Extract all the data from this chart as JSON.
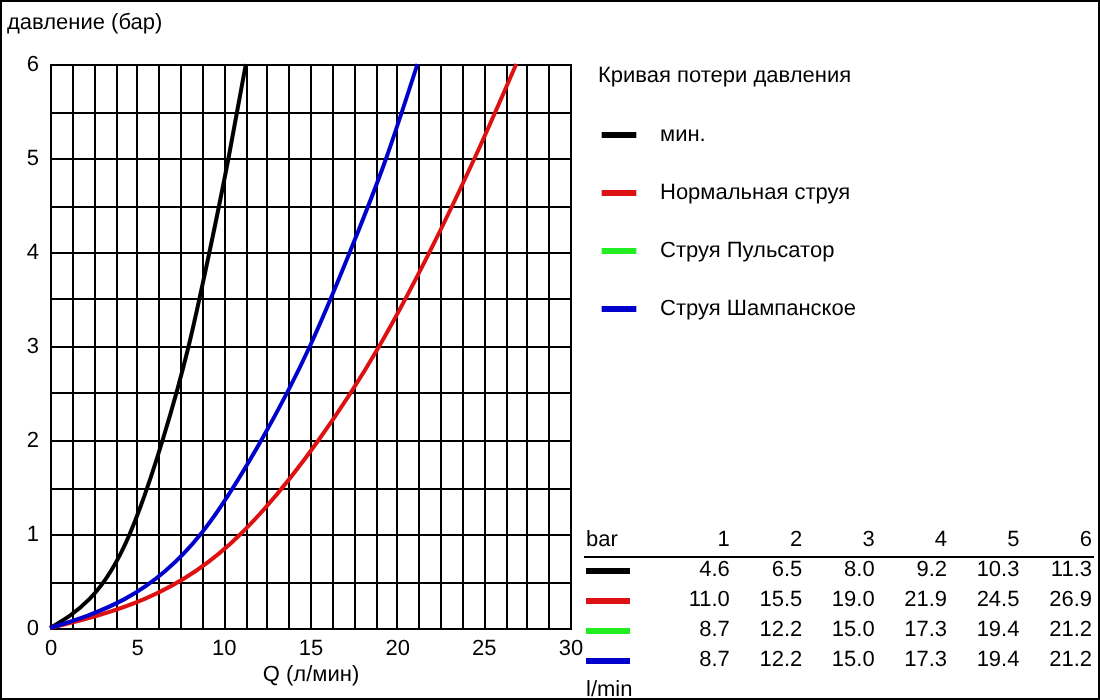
{
  "chart_data": {
    "type": "line",
    "xlabel": "Q (л/мин)",
    "ylabel": "давление (бар)",
    "legend_title": "Кривая потери давления",
    "xlim": [
      0,
      30
    ],
    "ylim": [
      0,
      6
    ],
    "xticks": [
      0,
      {
        "value": 1.25,
        "label": null
      },
      {
        "value": 2.5,
        "label": null
      },
      {
        "value": 3.75,
        "label": null
      },
      5,
      {
        "value": 6.25,
        "label": null
      },
      {
        "value": 7.5,
        "label": null
      },
      {
        "value": 8.75,
        "label": null
      },
      10,
      {
        "value": 11.25,
        "label": null
      },
      {
        "value": 12.5,
        "label": null
      },
      {
        "value": 13.75,
        "label": null
      },
      15,
      {
        "value": 16.25,
        "label": null
      },
      {
        "value": 17.5,
        "label": null
      },
      {
        "value": 18.75,
        "label": null
      },
      20,
      {
        "value": 21.25,
        "label": null
      },
      {
        "value": 22.5,
        "label": null
      },
      {
        "value": 23.75,
        "label": null
      },
      25,
      {
        "value": 26.25,
        "label": null
      },
      {
        "value": 27.5,
        "label": null
      },
      {
        "value": 28.75,
        "label": null
      },
      30
    ],
    "yticks": [
      0,
      {
        "value": 0.5,
        "label": null
      },
      1,
      {
        "value": 1.5,
        "label": null
      },
      2,
      {
        "value": 2.5,
        "label": null
      },
      3,
      {
        "value": 3.5,
        "label": null
      },
      4,
      {
        "value": 4.5,
        "label": null
      },
      5,
      {
        "value": 5.5,
        "label": null
      },
      6
    ],
    "grid": true,
    "legend": "top right",
    "line_style": "solid",
    "series": [
      {
        "name": "мин.",
        "color": "#000000",
        "x": [
          0,
          4.6,
          6.5,
          8.0,
          9.2,
          10.3,
          11.3
        ],
        "values": [
          0,
          1,
          2,
          3,
          4,
          5,
          6
        ]
      },
      {
        "name": "Нормальная струя",
        "color": "#dd1111",
        "x": [
          0,
          11.0,
          15.5,
          19.0,
          21.9,
          24.5,
          26.9
        ],
        "values": [
          0,
          1,
          2,
          3,
          4,
          5,
          6
        ]
      },
      {
        "name": "Струя Пульсатор",
        "color": "#22ee22",
        "values": [
          null,
          null,
          null,
          null,
          null,
          null,
          null
        ]
      },
      {
        "name": "Струя Шампанское",
        "color": "#0000cc",
        "x": [
          0,
          8.7,
          12.2,
          15.0,
          17.3,
          19.4,
          21.2
        ],
        "values": [
          0,
          1,
          2,
          3,
          4,
          5,
          6
        ]
      }
    ],
    "annotations": [
      "bar",
      "1",
      "2",
      "3",
      "4",
      "5",
      "6",
      "4.6",
      "6.5",
      "8.0",
      "9.2",
      "10.3",
      "11.3",
      "11.0",
      "15.5",
      "19.0",
      "21.9",
      "24.5",
      "26.9",
      "8.7",
      "12.2",
      "15.0",
      "17.3",
      "19.4",
      "21.2",
      "8.7",
      "12.2",
      "15.0",
      "17.3",
      "19.4",
      "21.2",
      "l/min"
    ]
  }
}
